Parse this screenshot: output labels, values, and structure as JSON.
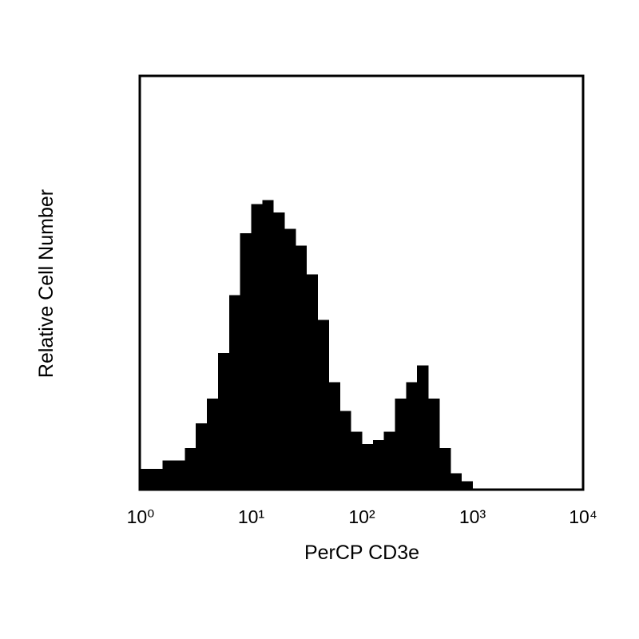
{
  "chart_data": {
    "type": "histogram",
    "x_label": "PerCP CD3e",
    "y_label": "Relative Cell Number",
    "x_log": true,
    "color": "#000000",
    "bins": [
      1,
      1.26,
      1.58,
      2,
      2.51,
      3.16,
      3.98,
      5.01,
      6.31,
      7.94,
      10,
      12.6,
      15.8,
      20,
      25.1,
      31.6,
      39.8,
      50.1,
      63.1,
      79.4,
      100,
      126,
      158,
      200,
      251,
      316,
      398,
      501,
      631,
      794,
      1000,
      1260,
      1580,
      2000,
      2510,
      3160,
      3980,
      5010,
      6310,
      7940,
      10000
    ],
    "counts": [
      5,
      5,
      7,
      7,
      10,
      16,
      22,
      33,
      47,
      62,
      69,
      70,
      67,
      63,
      59,
      52,
      41,
      26,
      19,
      14,
      11,
      12,
      14,
      22,
      26,
      30,
      22,
      10,
      4,
      2,
      0,
      0,
      0,
      0,
      0,
      0,
      0,
      0,
      0,
      0
    ],
    "xlim": [
      1,
      10000
    ],
    "xticks": [
      {
        "value": 1,
        "label": "10⁰"
      },
      {
        "value": 10,
        "label": "10¹"
      },
      {
        "value": 100,
        "label": "10²"
      },
      {
        "value": 1000,
        "label": "10³"
      },
      {
        "value": 10000,
        "label": "10⁴"
      }
    ],
    "ylim": [
      0,
      100
    ]
  }
}
